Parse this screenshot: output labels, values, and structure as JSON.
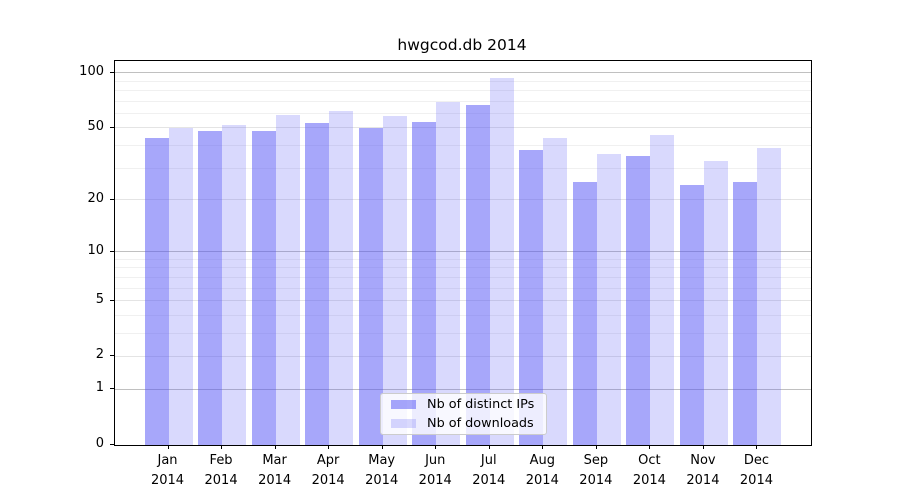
{
  "chart_data": {
    "type": "bar",
    "title": "hwgcod.db 2014",
    "categories": [
      "Jan",
      "Feb",
      "Mar",
      "Apr",
      "May",
      "Jun",
      "Jul",
      "Aug",
      "Sep",
      "Oct",
      "Nov",
      "Dec"
    ],
    "category_year": "2014",
    "series": [
      {
        "name": "Nb of distinct IPs",
        "color": "rgba(80,80,245,0.5)",
        "values": [
          44,
          48,
          48,
          53,
          50,
          54,
          67,
          38,
          25,
          35,
          24,
          25
        ]
      },
      {
        "name": "Nb of downloads",
        "color": "rgba(80,80,245,0.22)",
        "values": [
          50,
          52,
          59,
          62,
          58,
          69,
          94,
          44,
          36,
          46,
          33,
          39
        ]
      }
    ],
    "yscale": "log1p",
    "ylim": [
      0,
      116
    ],
    "y_ticks": [
      {
        "value": 100,
        "label": "100",
        "grid": "major"
      },
      {
        "value": 50,
        "label": "50",
        "grid": "labeled-minor"
      },
      {
        "value": 20,
        "label": "20",
        "grid": "labeled-minor"
      },
      {
        "value": 10,
        "label": "10",
        "grid": "major"
      },
      {
        "value": 5,
        "label": "5",
        "grid": "labeled-minor"
      },
      {
        "value": 2,
        "label": "2",
        "grid": "labeled-minor"
      },
      {
        "value": 1,
        "label": "1",
        "grid": "major"
      },
      {
        "value": 0,
        "label": "0",
        "grid": "none"
      }
    ],
    "y_minor_ticks": [
      3,
      4,
      6,
      7,
      8,
      9,
      30,
      40,
      60,
      70,
      80,
      90
    ],
    "grid": true,
    "legend_position": "lower center"
  },
  "colors": {
    "major_grid": "#c0c0c0",
    "labeled_minor_grid": "#e4e4e4",
    "minor_grid": "#f0f0f0",
    "spine": "#000000"
  }
}
